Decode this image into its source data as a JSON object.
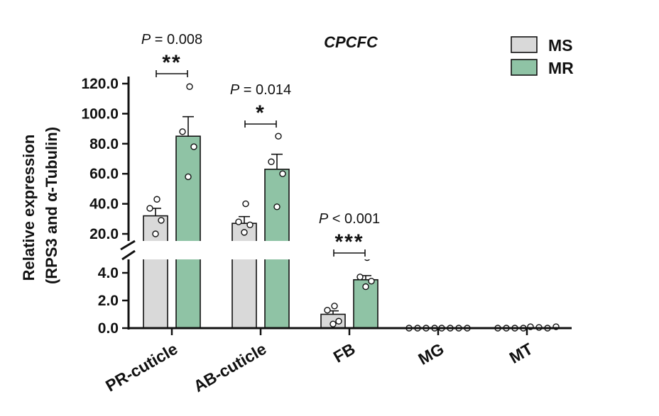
{
  "chart_data": {
    "type": "bar",
    "title": "CPCFC",
    "ylabel": [
      "Relative expression",
      "(RPS3 and α-Tubulin)"
    ],
    "xlabel": "",
    "categories": [
      "PR-cuticle",
      "AB-cuticle",
      "FB",
      "MG",
      "MT"
    ],
    "y_axis_break": {
      "lower_segment": [
        0,
        4.0
      ],
      "upper_segment": [
        20.0,
        120.0
      ]
    },
    "yticks_lower": [
      "0.0",
      "2.0",
      "4.0"
    ],
    "yticks_upper": [
      "20.0",
      "40.0",
      "60.0",
      "80.0",
      "100.0",
      "120.0"
    ],
    "series": [
      {
        "name": "MS",
        "color": "#d9d9d9",
        "values": [
          32,
          27,
          1.0,
          0.0,
          0.0
        ],
        "sem": [
          5,
          4.5,
          0.25,
          0,
          0
        ],
        "points": [
          [
            43,
            37,
            29,
            20
          ],
          [
            40,
            28,
            26,
            21
          ],
          [
            1.6,
            1.3,
            0.5,
            0.3
          ],
          [
            0,
            0,
            0,
            0
          ],
          [
            0,
            0,
            0,
            0
          ]
        ]
      },
      {
        "name": "MR",
        "color": "#8fc3a5",
        "values": [
          85,
          63,
          3.5,
          0.0,
          0.0
        ],
        "sem": [
          13,
          10,
          0.3,
          0,
          0
        ],
        "points": [
          [
            118,
            88,
            78,
            58
          ],
          [
            85,
            68,
            60,
            38
          ],
          [
            4.2,
            3.7,
            3.4,
            3.0
          ],
          [
            0,
            0,
            0,
            0
          ],
          [
            0.1,
            0.05,
            0.0,
            0.1
          ]
        ]
      }
    ],
    "significance": [
      {
        "category": "PR-cuticle",
        "p_text": "P = 0.008",
        "stars": "**"
      },
      {
        "category": "AB-cuticle",
        "p_text": "P = 0.014",
        "stars": "*"
      },
      {
        "category": "FB",
        "p_text": "P < 0.001",
        "stars": "***"
      }
    ],
    "legend": {
      "position": "top-right",
      "entries": [
        "MS",
        "MR"
      ]
    },
    "grid": false
  }
}
